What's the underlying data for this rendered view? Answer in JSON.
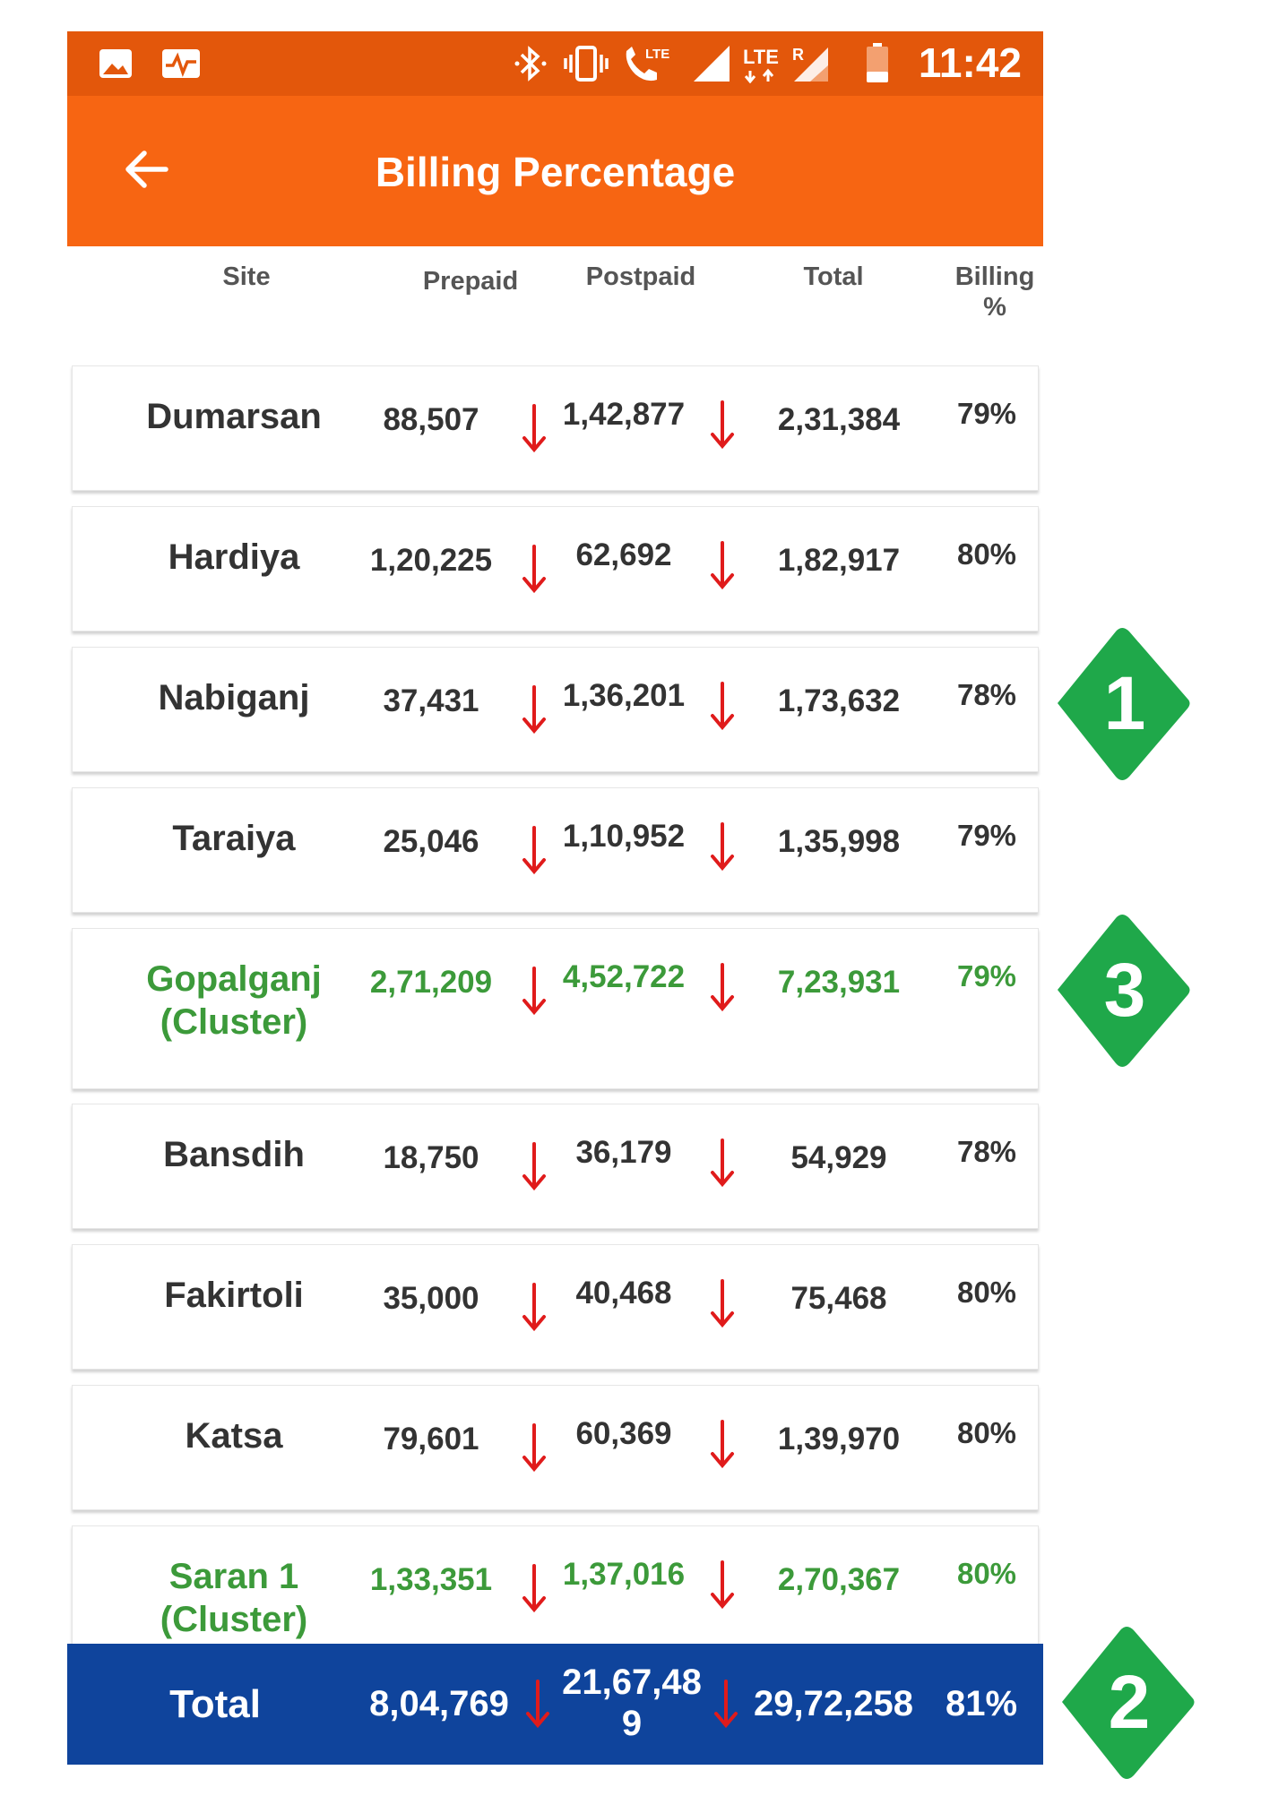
{
  "status_bar": {
    "time": "11:42",
    "icons": [
      "image-icon",
      "activity-icon",
      "bluetooth-icon",
      "vibrate-icon",
      "lte-call-icon",
      "signal-icon",
      "lte-data-icon",
      "roaming-signal-icon",
      "battery-icon"
    ],
    "lte_label": "LTE",
    "roaming_label": "R"
  },
  "app_bar": {
    "title": "Billing Percentage",
    "back_icon": "arrow-left-icon"
  },
  "table": {
    "headers": {
      "site": "Site",
      "prepaid": "Prepaid",
      "postpaid": "Postpaid",
      "total": "Total",
      "billing_line1": "Billing",
      "billing_line2": "%"
    },
    "rows": [
      {
        "site": "Dumarsan",
        "site_line2": "",
        "prepaid": "88,507",
        "postpaid": "1,42,877",
        "total": "2,31,384",
        "billing": "79%",
        "cluster": false
      },
      {
        "site": "Hardiya",
        "site_line2": "",
        "prepaid": "1,20,225",
        "postpaid": "62,692",
        "total": "1,82,917",
        "billing": "80%",
        "cluster": false
      },
      {
        "site": "Nabiganj",
        "site_line2": "",
        "prepaid": "37,431",
        "postpaid": "1,36,201",
        "total": "1,73,632",
        "billing": "78%",
        "cluster": false
      },
      {
        "site": "Taraiya",
        "site_line2": "",
        "prepaid": "25,046",
        "postpaid": "1,10,952",
        "total": "1,35,998",
        "billing": "79%",
        "cluster": false
      },
      {
        "site": "Gopalganj",
        "site_line2": "(Cluster)",
        "prepaid": "2,71,209",
        "postpaid": "4,52,722",
        "total": "7,23,931",
        "billing": "79%",
        "cluster": true
      },
      {
        "site": "Bansdih",
        "site_line2": "",
        "prepaid": "18,750",
        "postpaid": "36,179",
        "total": "54,929",
        "billing": "78%",
        "cluster": false
      },
      {
        "site": "Fakirtoli",
        "site_line2": "",
        "prepaid": "35,000",
        "postpaid": "40,468",
        "total": "75,468",
        "billing": "80%",
        "cluster": false
      },
      {
        "site": "Katsa",
        "site_line2": "",
        "prepaid": "79,601",
        "postpaid": "60,369",
        "total": "1,39,970",
        "billing": "80%",
        "cluster": false
      },
      {
        "site": "Saran 1",
        "site_line2": "(Cluster)",
        "prepaid": "1,33,351",
        "postpaid": "1,37,016",
        "total": "2,70,367",
        "billing": "80%",
        "cluster": true
      }
    ],
    "total_row": {
      "label": "Total",
      "prepaid": "8,04,769",
      "postpaid_line1": "21,67,48",
      "postpaid_line2": "9",
      "total": "29,72,258",
      "billing": "81%"
    }
  },
  "badges": [
    {
      "number": "1",
      "color": "#1fa84a"
    },
    {
      "number": "3",
      "color": "#1fa84a"
    },
    {
      "number": "2",
      "color": "#1fa84a"
    }
  ],
  "colors": {
    "status_bar": "#e3570b",
    "app_bar": "#f76512",
    "cluster_text": "#3c9a3a",
    "down_arrow": "#e01b1b",
    "total_bar": "#0f449c"
  }
}
